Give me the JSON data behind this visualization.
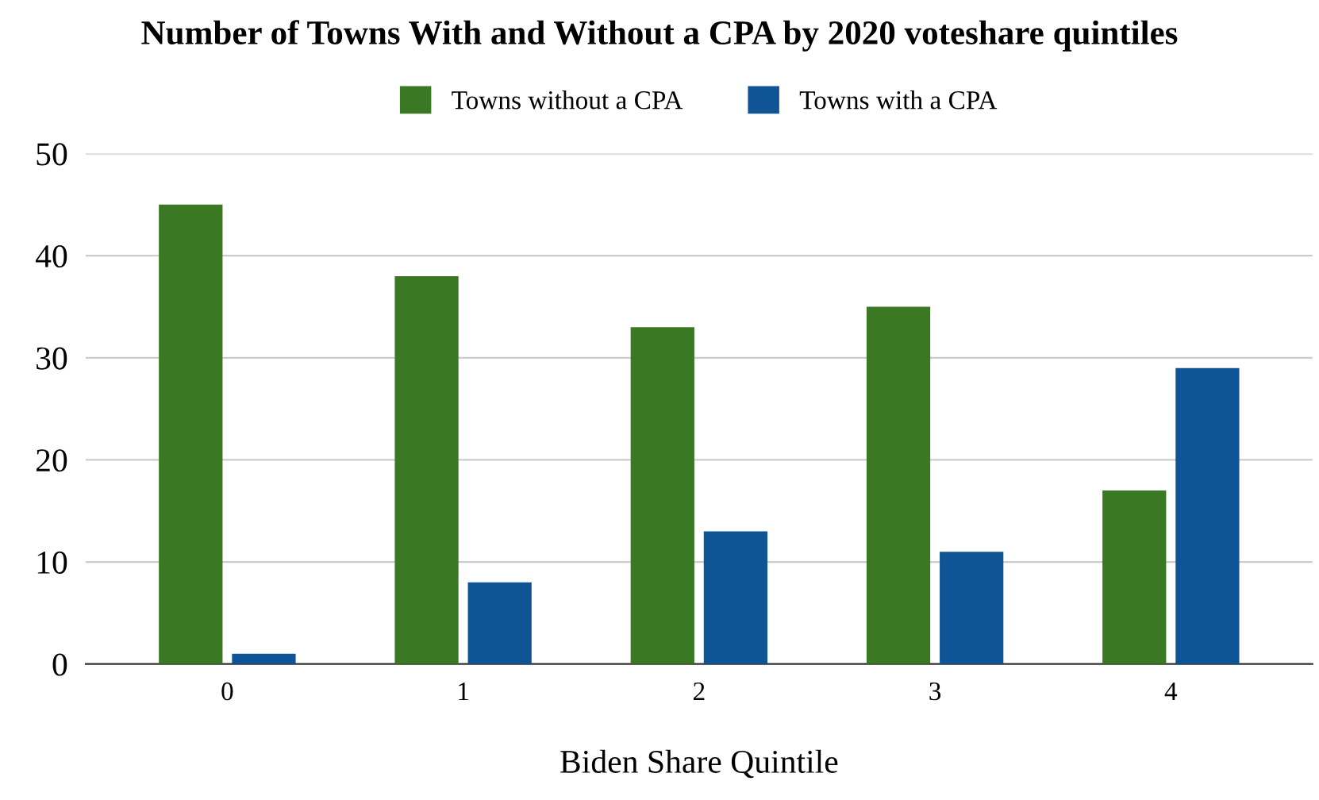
{
  "chart_data": {
    "type": "bar",
    "title": "Number of Towns With and Without a CPA by 2020 voteshare quintiles",
    "xlabel": "Biden Share Quintile",
    "categories": [
      "0",
      "1",
      "2",
      "3",
      "4"
    ],
    "series": [
      {
        "name": "Towns without a CPA",
        "color": "#3b7823",
        "values": [
          45,
          38,
          33,
          35,
          17
        ]
      },
      {
        "name": "Towns with a CPA",
        "color": "#0f5596",
        "values": [
          1,
          8,
          13,
          11,
          29
        ]
      }
    ],
    "ylim": [
      0,
      50
    ],
    "yticks": [
      0,
      10,
      20,
      30,
      40,
      50
    ],
    "grid": "y",
    "legend": "top"
  }
}
